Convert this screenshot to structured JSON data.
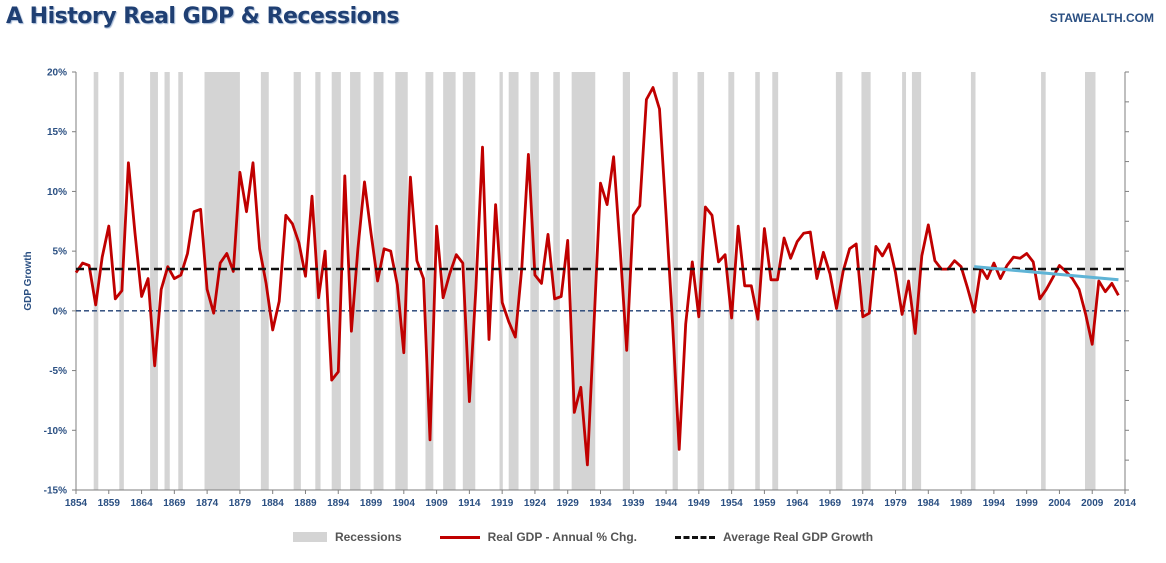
{
  "header": {
    "title": "A History Real GDP & Recessions",
    "brand": "STAWEALTH.COM"
  },
  "colors": {
    "recession": "#d4d4d4",
    "gdp_line": "#c00000",
    "average_line": "#111111",
    "zero_line": "#1f3f73",
    "trend_line": "#5fb4d6",
    "axis_text": "#2a4f82"
  },
  "chart_data": {
    "type": "line",
    "title": "A History Real GDP & Recessions",
    "xlabel": "",
    "ylabel": "GDP Growth",
    "xlim": [
      1854,
      2014
    ],
    "ylim": [
      -15,
      20
    ],
    "y_ticks": [
      20,
      15,
      10,
      5,
      0,
      -5,
      -10,
      -15
    ],
    "y_tick_labels": [
      "20%",
      "15%",
      "10%",
      "5%",
      "0%",
      "-5%",
      "-10%",
      "-15%"
    ],
    "x_ticks": [
      1854,
      1859,
      1864,
      1869,
      1874,
      1879,
      1884,
      1889,
      1894,
      1899,
      1904,
      1909,
      1914,
      1919,
      1924,
      1929,
      1934,
      1939,
      1944,
      1949,
      1954,
      1959,
      1964,
      1969,
      1974,
      1979,
      1984,
      1989,
      1994,
      1999,
      2004,
      2009,
      2014
    ],
    "grid": false,
    "legend_position": "bottom",
    "legend": [
      "Recessions",
      "Real GDP - Annual % Chg.",
      "Average Real GDP Growth"
    ],
    "average_growth": 3.5,
    "recessions": [
      [
        1856.7,
        1857.4
      ],
      [
        1860.6,
        1861.3
      ],
      [
        1865.3,
        1866.5
      ],
      [
        1867.5,
        1868.3
      ],
      [
        1869.6,
        1870.3
      ],
      [
        1873.6,
        1879.0
      ],
      [
        1882.2,
        1883.4
      ],
      [
        1887.2,
        1888.3
      ],
      [
        1890.5,
        1891.3
      ],
      [
        1893.0,
        1894.4
      ],
      [
        1895.8,
        1897.4
      ],
      [
        1899.4,
        1900.9
      ],
      [
        1902.7,
        1904.6
      ],
      [
        1907.3,
        1908.5
      ],
      [
        1910.0,
        1911.9
      ],
      [
        1913.0,
        1914.9
      ],
      [
        1918.6,
        1919.1
      ],
      [
        1920.0,
        1921.5
      ],
      [
        1923.3,
        1924.6
      ],
      [
        1926.8,
        1927.8
      ],
      [
        1929.6,
        1933.2
      ],
      [
        1937.4,
        1938.5
      ],
      [
        1945.0,
        1945.8
      ],
      [
        1948.8,
        1949.8
      ],
      [
        1953.5,
        1954.4
      ],
      [
        1957.6,
        1958.3
      ],
      [
        1960.2,
        1961.1
      ],
      [
        1969.9,
        1970.9
      ],
      [
        1973.8,
        1975.2
      ],
      [
        1980.0,
        1980.6
      ],
      [
        1981.5,
        1982.9
      ],
      [
        1990.5,
        1991.2
      ],
      [
        2001.2,
        2001.9
      ],
      [
        2007.9,
        2009.5
      ]
    ],
    "series": [
      {
        "name": "Real GDP - Annual % Chg.",
        "x": [
          1854,
          1855,
          1856,
          1857,
          1858,
          1859,
          1860,
          1861,
          1862,
          1863,
          1864,
          1865,
          1866,
          1867,
          1868,
          1869,
          1870,
          1871,
          1872,
          1873,
          1874,
          1875,
          1876,
          1877,
          1878,
          1879,
          1880,
          1881,
          1882,
          1883,
          1884,
          1885,
          1886,
          1887,
          1888,
          1889,
          1890,
          1891,
          1892,
          1893,
          1894,
          1895,
          1896,
          1897,
          1898,
          1899,
          1900,
          1901,
          1902,
          1903,
          1904,
          1905,
          1906,
          1907,
          1908,
          1909,
          1910,
          1911,
          1912,
          1913,
          1914,
          1915,
          1916,
          1917,
          1918,
          1919,
          1920,
          1921,
          1922,
          1923,
          1924,
          1925,
          1926,
          1927,
          1928,
          1929,
          1930,
          1931,
          1932,
          1933,
          1934,
          1935,
          1936,
          1937,
          1938,
          1939,
          1940,
          1941,
          1942,
          1943,
          1944,
          1945,
          1946,
          1947,
          1948,
          1949,
          1950,
          1951,
          1952,
          1953,
          1954,
          1955,
          1956,
          1957,
          1958,
          1959,
          1960,
          1961,
          1962,
          1963,
          1964,
          1965,
          1966,
          1967,
          1968,
          1969,
          1970,
          1971,
          1972,
          1973,
          1974,
          1975,
          1976,
          1977,
          1978,
          1979,
          1980,
          1981,
          1982,
          1983,
          1984,
          1985,
          1986,
          1987,
          1988,
          1989,
          1990,
          1991,
          1992,
          1993,
          1994,
          1995,
          1996,
          1997,
          1998,
          1999,
          2000,
          2001,
          2002,
          2003,
          2004,
          2005,
          2006,
          2007,
          2008,
          2009,
          2010,
          2011,
          2012,
          2013
        ],
        "values": [
          3.2,
          4.0,
          3.8,
          0.5,
          4.5,
          7.1,
          1.0,
          1.7,
          12.4,
          6.5,
          1.2,
          2.7,
          -4.6,
          1.8,
          3.7,
          2.7,
          3.0,
          4.8,
          8.3,
          8.5,
          1.8,
          -0.2,
          4.0,
          4.8,
          3.3,
          11.6,
          8.3,
          12.4,
          5.2,
          2.3,
          -1.6,
          0.8,
          8.0,
          7.3,
          5.7,
          2.9,
          9.6,
          1.1,
          5.0,
          -5.8,
          -5.1,
          11.3,
          -1.7,
          5.2,
          10.8,
          6.5,
          2.5,
          5.2,
          5.0,
          2.2,
          -3.5,
          11.2,
          4.2,
          2.7,
          -10.8,
          7.1,
          1.1,
          3.1,
          4.7,
          4.0,
          -7.6,
          1.9,
          13.7,
          -2.4,
          8.9,
          0.7,
          -0.9,
          -2.2,
          3.6,
          13.1,
          3.0,
          2.3,
          6.4,
          1.0,
          1.2,
          5.9,
          -8.5,
          -6.4,
          -12.9,
          -1.3,
          10.7,
          8.9,
          12.9,
          5.1,
          -3.3,
          8.0,
          8.8,
          17.7,
          18.7,
          16.9,
          8.0,
          -1.1,
          -11.6,
          -1.1,
          4.1,
          -0.5,
          8.7,
          8.0,
          4.1,
          4.7,
          -0.6,
          7.1,
          2.1,
          2.1,
          -0.7,
          6.9,
          2.6,
          2.6,
          6.1,
          4.4,
          5.8,
          6.5,
          6.6,
          2.7,
          4.9,
          3.1,
          0.2,
          3.3,
          5.2,
          5.6,
          -0.5,
          -0.2,
          5.4,
          4.6,
          5.6,
          3.2,
          -0.3,
          2.5,
          -1.9,
          4.6,
          7.2,
          4.2,
          3.5,
          3.5,
          4.2,
          3.7,
          1.9,
          -0.1,
          3.6,
          2.7,
          4.0,
          2.7,
          3.8,
          4.5,
          4.4,
          4.8,
          4.1,
          1.0,
          1.8,
          2.8,
          3.8,
          3.3,
          2.7,
          1.8,
          -0.3,
          -2.8,
          2.5,
          1.6,
          2.3,
          1.3
        ]
      },
      {
        "name": "Average Real GDP Growth",
        "x": [
          1854,
          2014
        ],
        "values": [
          3.5,
          3.5
        ]
      }
    ],
    "trend": {
      "x": [
        1991,
        2013
      ],
      "values": [
        3.7,
        2.6
      ]
    }
  }
}
